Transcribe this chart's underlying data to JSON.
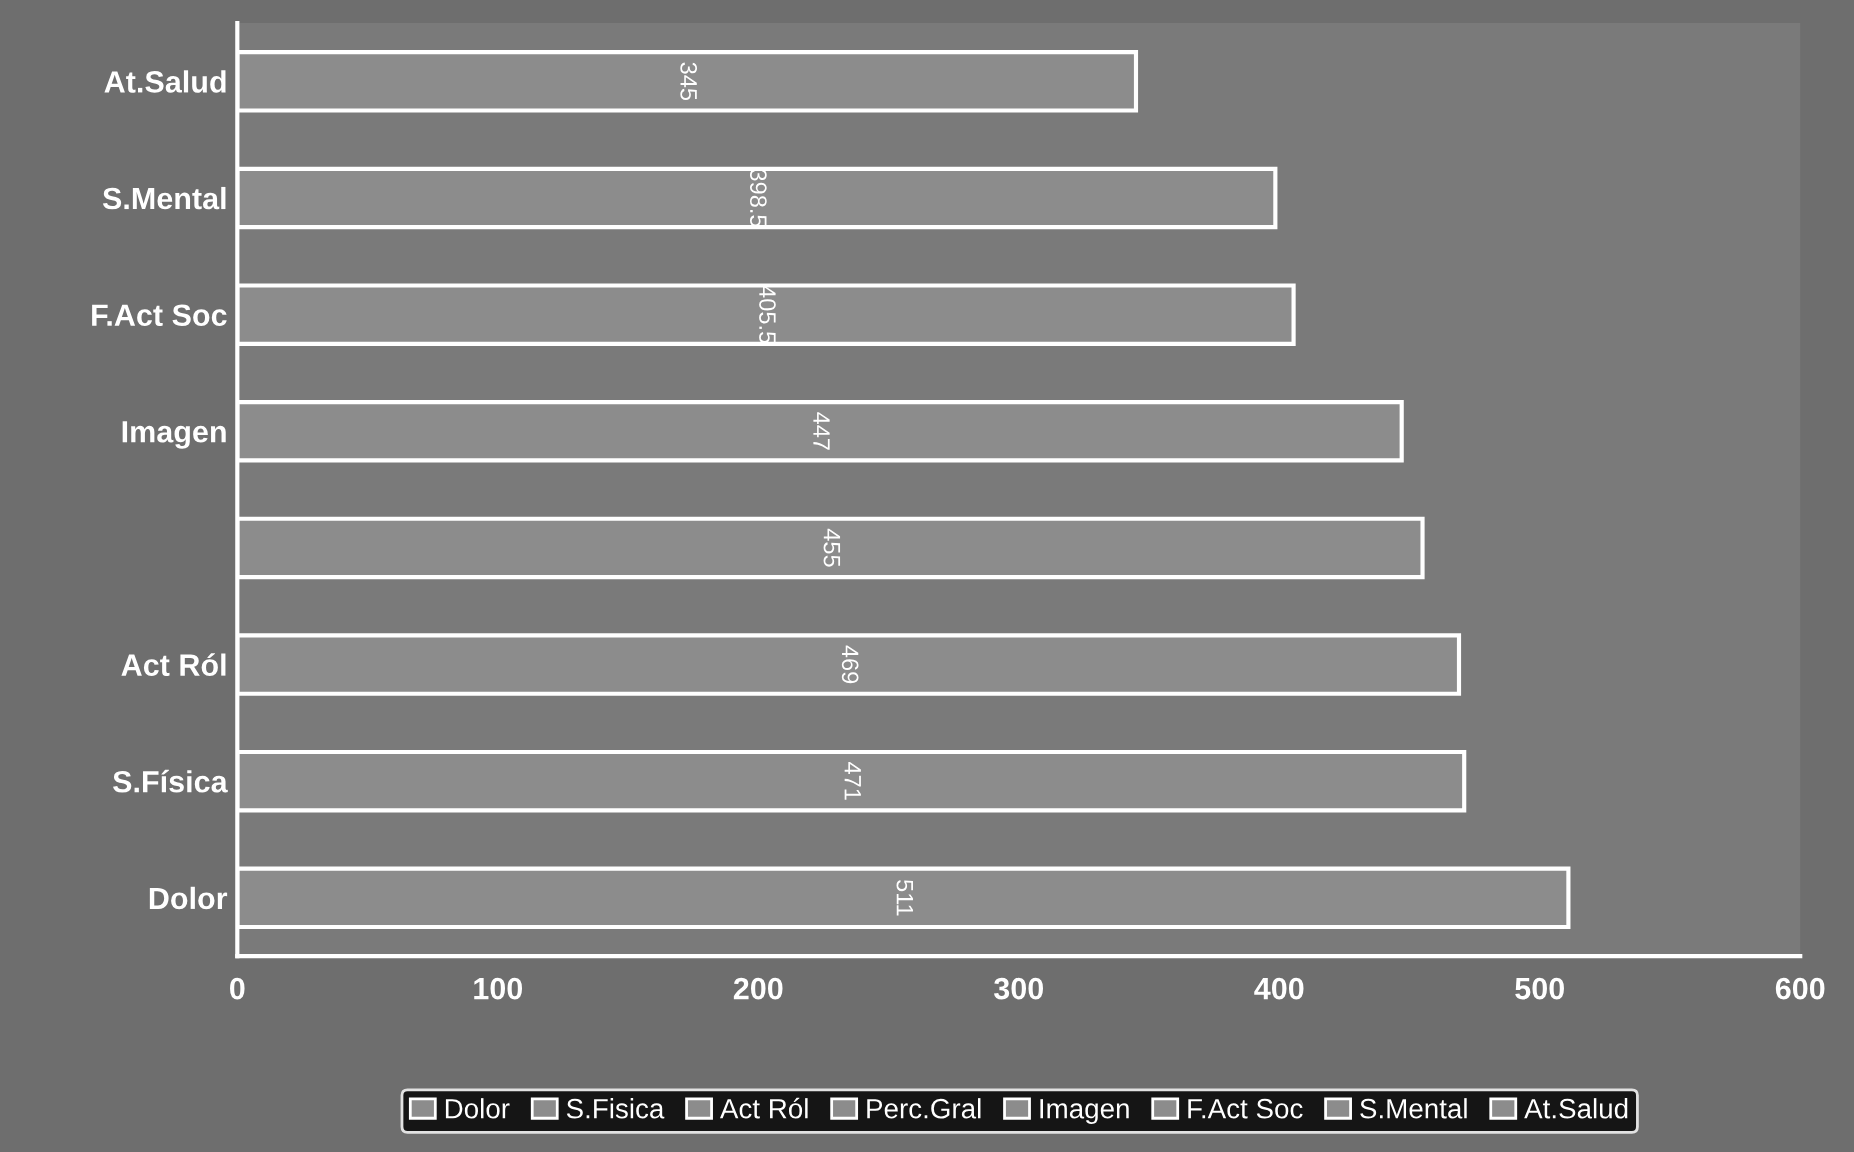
{
  "chart_data": {
    "type": "bar",
    "orientation": "horizontal",
    "categories": [
      "At.Salud",
      "S.Mental",
      "F.Act Soc",
      "Imagen",
      null,
      "Act Ról",
      "S.Física",
      "Dolor"
    ],
    "series": [
      {
        "name": "Dolor",
        "color": "#8c8c8c",
        "values": [
          null,
          null,
          null,
          null,
          null,
          null,
          null,
          511
        ]
      },
      {
        "name": "S.Fisica",
        "color": "#8c8c8c",
        "values": [
          null,
          null,
          null,
          null,
          null,
          null,
          471,
          null
        ]
      },
      {
        "name": "Act Ról",
        "color": "#8c8c8c",
        "values": [
          null,
          null,
          null,
          null,
          null,
          469,
          null,
          null
        ]
      },
      {
        "name": "Perc.Gral",
        "color": "#8c8c8c",
        "values": [
          null,
          null,
          null,
          null,
          455,
          null,
          null,
          null
        ]
      },
      {
        "name": "Imagen",
        "color": "#8c8c8c",
        "values": [
          null,
          null,
          null,
          447,
          null,
          null,
          null,
          null
        ]
      },
      {
        "name": "F.Act Soc",
        "color": "#8c8c8c",
        "values": [
          null,
          null,
          405.5,
          null,
          null,
          null,
          null,
          null
        ]
      },
      {
        "name": "S.Mental",
        "color": "#8c8c8c",
        "values": [
          null,
          398.5,
          null,
          null,
          null,
          null,
          null,
          null
        ]
      },
      {
        "name": "At.Salud",
        "color": "#8c8c8c",
        "values": [
          345,
          null,
          null,
          null,
          null,
          null,
          null,
          null
        ]
      }
    ],
    "xlim": [
      0,
      600
    ],
    "xticks": [
      0,
      100,
      200,
      300,
      400,
      500,
      600
    ],
    "data_labels": true,
    "legend": "bottom",
    "grid": false
  }
}
